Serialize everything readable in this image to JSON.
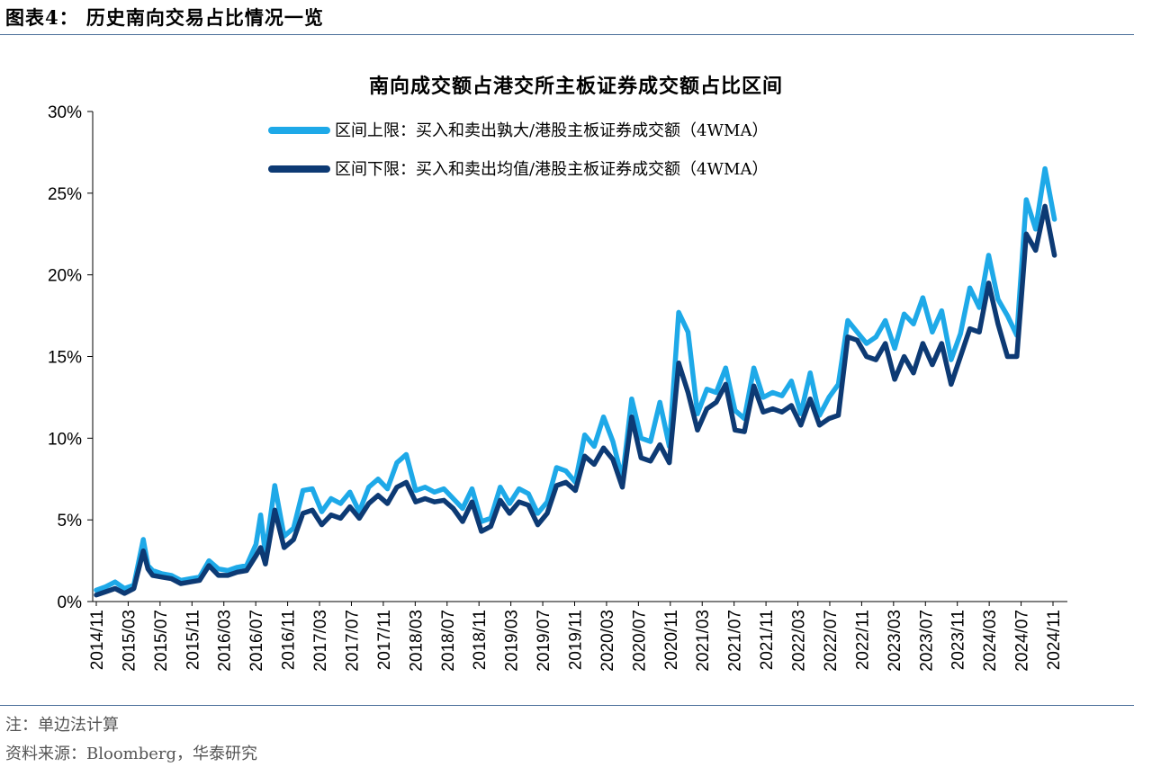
{
  "figure_title": "图表4：  历史南向交易占比情况一览",
  "note": "注：单边法计算",
  "source": "资料来源：Bloomberg，华泰研究",
  "chart_data": {
    "type": "line",
    "title": "南向成交额占港交所主板证券成交额占比区间",
    "xlabel": "",
    "ylabel": "",
    "ylim": [
      0,
      30
    ],
    "yticks": [
      0,
      5,
      10,
      15,
      20,
      25,
      30
    ],
    "ytick_labels": [
      "0%",
      "5%",
      "10%",
      "15%",
      "20%",
      "25%",
      "30%"
    ],
    "x_range": [
      "2014/11",
      "2025/02"
    ],
    "xtick_labels": [
      "2014/11",
      "2015/03",
      "2015/07",
      "2015/11",
      "2016/03",
      "2016/07",
      "2016/11",
      "2017/03",
      "2017/07",
      "2017/11",
      "2018/03",
      "2018/07",
      "2018/11",
      "2019/03",
      "2019/07",
      "2019/11",
      "2020/03",
      "2020/07",
      "2020/11",
      "2021/03",
      "2021/07",
      "2021/11",
      "2022/03",
      "2022/07",
      "2022/11",
      "2023/03",
      "2023/07",
      "2023/11",
      "2024/03",
      "2024/07",
      "2024/11"
    ],
    "grid": false,
    "legend_position": "top-left",
    "series": [
      {
        "name": "区间上限：买入和卖出孰大/港股主板证券成交额（4WMA）",
        "color": "#1ea9e8",
        "points": [
          [
            0,
            0.7
          ],
          [
            1,
            0.9
          ],
          [
            2,
            1.2
          ],
          [
            3,
            0.8
          ],
          [
            4,
            1.0
          ],
          [
            5,
            3.8
          ],
          [
            5.5,
            2.2
          ],
          [
            6,
            1.9
          ],
          [
            7,
            1.7
          ],
          [
            8,
            1.6
          ],
          [
            9,
            1.3
          ],
          [
            10,
            1.4
          ],
          [
            11,
            1.5
          ],
          [
            12,
            2.5
          ],
          [
            13,
            2.0
          ],
          [
            14,
            1.9
          ],
          [
            15,
            2.1
          ],
          [
            16,
            2.2
          ],
          [
            17,
            3.5
          ],
          [
            17.5,
            5.3
          ],
          [
            18,
            2.9
          ],
          [
            19,
            7.1
          ],
          [
            20,
            4.0
          ],
          [
            21,
            4.5
          ],
          [
            22,
            6.8
          ],
          [
            23,
            6.9
          ],
          [
            24,
            5.5
          ],
          [
            25,
            6.3
          ],
          [
            26,
            6.0
          ],
          [
            27,
            6.7
          ],
          [
            28,
            5.5
          ],
          [
            29,
            7.0
          ],
          [
            30,
            7.5
          ],
          [
            31,
            6.9
          ],
          [
            32,
            8.5
          ],
          [
            33,
            9.0
          ],
          [
            34,
            6.8
          ],
          [
            35,
            7.0
          ],
          [
            36,
            6.7
          ],
          [
            37,
            6.9
          ],
          [
            38,
            6.3
          ],
          [
            39,
            5.7
          ],
          [
            40,
            6.9
          ],
          [
            41,
            4.9
          ],
          [
            42,
            5.1
          ],
          [
            43,
            7.0
          ],
          [
            44,
            6.0
          ],
          [
            45,
            6.9
          ],
          [
            46,
            6.6
          ],
          [
            47,
            5.4
          ],
          [
            48,
            6.1
          ],
          [
            49,
            8.2
          ],
          [
            50,
            8.0
          ],
          [
            51,
            7.3
          ],
          [
            52,
            10.2
          ],
          [
            53,
            9.5
          ],
          [
            54,
            11.3
          ],
          [
            55,
            9.8
          ],
          [
            56,
            7.5
          ],
          [
            57,
            12.4
          ],
          [
            58,
            10.0
          ],
          [
            59,
            9.8
          ],
          [
            60,
            12.2
          ],
          [
            61,
            9.5
          ],
          [
            62,
            17.7
          ],
          [
            63,
            16.5
          ],
          [
            64,
            11.5
          ],
          [
            65,
            13.0
          ],
          [
            66,
            12.8
          ],
          [
            67,
            14.3
          ],
          [
            68,
            11.7
          ],
          [
            69,
            11.2
          ],
          [
            70,
            14.3
          ],
          [
            71,
            12.5
          ],
          [
            72,
            12.8
          ],
          [
            73,
            12.6
          ],
          [
            74,
            13.5
          ],
          [
            75,
            11.5
          ],
          [
            76,
            14.0
          ],
          [
            77,
            11.4
          ],
          [
            78,
            12.5
          ],
          [
            79,
            13.3
          ],
          [
            80,
            17.2
          ],
          [
            81,
            16.5
          ],
          [
            82,
            15.8
          ],
          [
            83,
            16.2
          ],
          [
            84,
            17.2
          ],
          [
            85,
            15.5
          ],
          [
            86,
            17.6
          ],
          [
            87,
            17.0
          ],
          [
            88,
            18.6
          ],
          [
            89,
            16.5
          ],
          [
            90,
            17.8
          ],
          [
            91,
            14.8
          ],
          [
            92,
            16.4
          ],
          [
            93,
            19.2
          ],
          [
            94,
            18.0
          ],
          [
            95,
            21.2
          ],
          [
            96,
            18.5
          ],
          [
            97,
            17.5
          ],
          [
            98,
            16.3
          ],
          [
            99,
            24.6
          ],
          [
            100,
            22.8
          ],
          [
            101,
            26.5
          ],
          [
            102,
            23.4
          ]
        ]
      },
      {
        "name": "区间下限：买入和卖出均值/港股主板证券成交额（4WMA）",
        "color": "#0d3a74",
        "points": [
          [
            0,
            0.4
          ],
          [
            1,
            0.6
          ],
          [
            2,
            0.8
          ],
          [
            3,
            0.5
          ],
          [
            4,
            0.8
          ],
          [
            5,
            3.1
          ],
          [
            5.5,
            2.0
          ],
          [
            6,
            1.6
          ],
          [
            7,
            1.5
          ],
          [
            8,
            1.4
          ],
          [
            9,
            1.1
          ],
          [
            10,
            1.2
          ],
          [
            11,
            1.3
          ],
          [
            12,
            2.2
          ],
          [
            13,
            1.6
          ],
          [
            14,
            1.6
          ],
          [
            15,
            1.8
          ],
          [
            16,
            1.9
          ],
          [
            17,
            2.8
          ],
          [
            17.5,
            3.3
          ],
          [
            18,
            2.3
          ],
          [
            19,
            5.6
          ],
          [
            20,
            3.3
          ],
          [
            21,
            3.8
          ],
          [
            22,
            5.4
          ],
          [
            23,
            5.6
          ],
          [
            24,
            4.7
          ],
          [
            25,
            5.3
          ],
          [
            26,
            5.1
          ],
          [
            27,
            5.8
          ],
          [
            28,
            5.1
          ],
          [
            29,
            6.0
          ],
          [
            30,
            6.5
          ],
          [
            31,
            6.0
          ],
          [
            32,
            7.0
          ],
          [
            33,
            7.3
          ],
          [
            34,
            6.1
          ],
          [
            35,
            6.3
          ],
          [
            36,
            6.1
          ],
          [
            37,
            6.2
          ],
          [
            38,
            5.7
          ],
          [
            39,
            4.9
          ],
          [
            40,
            6.1
          ],
          [
            41,
            4.3
          ],
          [
            42,
            4.6
          ],
          [
            43,
            6.2
          ],
          [
            44,
            5.4
          ],
          [
            45,
            6.1
          ],
          [
            46,
            5.9
          ],
          [
            47,
            4.7
          ],
          [
            48,
            5.4
          ],
          [
            49,
            7.1
          ],
          [
            50,
            7.3
          ],
          [
            51,
            6.8
          ],
          [
            52,
            8.9
          ],
          [
            53,
            8.4
          ],
          [
            54,
            9.4
          ],
          [
            55,
            8.7
          ],
          [
            56,
            7.0
          ],
          [
            57,
            11.3
          ],
          [
            58,
            8.8
          ],
          [
            59,
            8.6
          ],
          [
            60,
            9.6
          ],
          [
            61,
            8.5
          ],
          [
            62,
            14.6
          ],
          [
            63,
            12.8
          ],
          [
            64,
            10.5
          ],
          [
            65,
            11.8
          ],
          [
            66,
            12.2
          ],
          [
            67,
            13.3
          ],
          [
            68,
            10.5
          ],
          [
            69,
            10.4
          ],
          [
            70,
            13.2
          ],
          [
            71,
            11.6
          ],
          [
            72,
            11.8
          ],
          [
            73,
            11.6
          ],
          [
            74,
            12.0
          ],
          [
            75,
            10.8
          ],
          [
            76,
            12.4
          ],
          [
            77,
            10.8
          ],
          [
            78,
            11.2
          ],
          [
            79,
            11.4
          ],
          [
            80,
            16.2
          ],
          [
            81,
            16.0
          ],
          [
            82,
            15.0
          ],
          [
            83,
            14.8
          ],
          [
            84,
            15.8
          ],
          [
            85,
            13.6
          ],
          [
            86,
            15.0
          ],
          [
            87,
            14.0
          ],
          [
            88,
            15.8
          ],
          [
            89,
            14.5
          ],
          [
            90,
            15.8
          ],
          [
            91,
            13.3
          ],
          [
            92,
            15.0
          ],
          [
            93,
            16.7
          ],
          [
            94,
            16.5
          ],
          [
            95,
            19.5
          ],
          [
            96,
            17.0
          ],
          [
            97,
            15.0
          ],
          [
            98,
            15.0
          ],
          [
            99,
            22.5
          ],
          [
            100,
            21.5
          ],
          [
            101,
            24.2
          ],
          [
            102,
            21.2
          ]
        ]
      }
    ]
  }
}
